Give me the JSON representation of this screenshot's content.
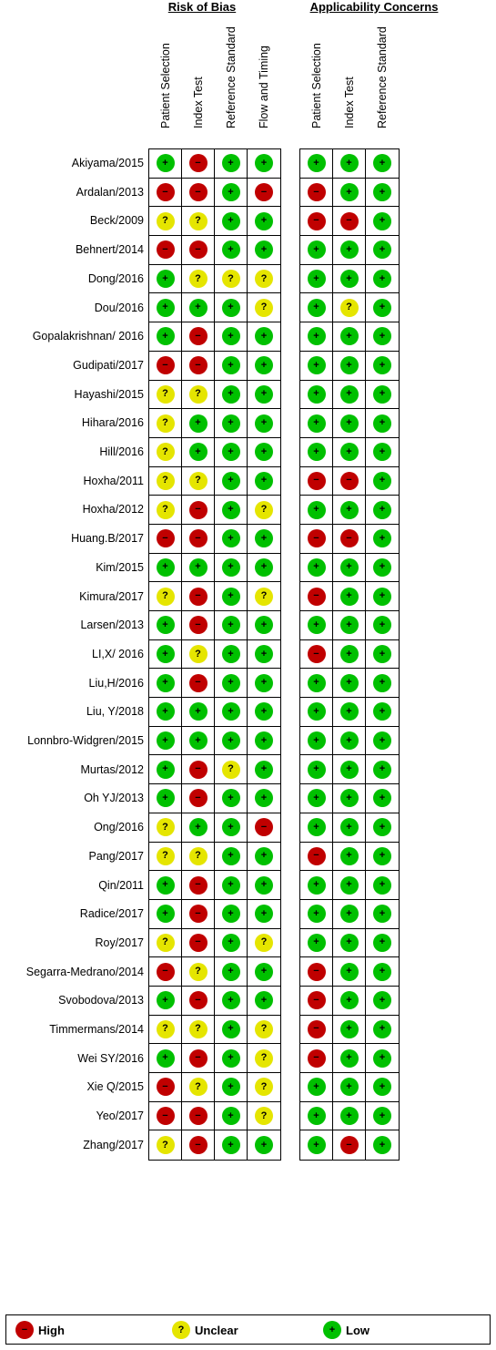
{
  "groups": {
    "risk_of_bias": "Risk of Bias",
    "applicability": "Applicability Concerns"
  },
  "columns": {
    "risk_of_bias": [
      "Patient Selection",
      "Index Test",
      "Reference Standard",
      "Flow and Timing"
    ],
    "applicability": [
      "Patient Selection",
      "Index Test",
      "Reference Standard"
    ]
  },
  "symbols": {
    "low": "+",
    "high": "−",
    "unclear": "?"
  },
  "colors": {
    "low": "#00c000",
    "high": "#c00000",
    "unclear": "#e5e500"
  },
  "legend": {
    "high": "High",
    "unclear": "Unclear",
    "low": "Low"
  },
  "studies": [
    {
      "name": "Akiyama/2015",
      "rob": [
        "low",
        "high",
        "low",
        "low"
      ],
      "ac": [
        "low",
        "low",
        "low"
      ]
    },
    {
      "name": "Ardalan/2013",
      "rob": [
        "high",
        "high",
        "low",
        "high"
      ],
      "ac": [
        "high",
        "low",
        "low"
      ]
    },
    {
      "name": "Beck/2009",
      "rob": [
        "unclear",
        "unclear",
        "low",
        "low"
      ],
      "ac": [
        "high",
        "high",
        "low"
      ]
    },
    {
      "name": "Behnert/2014",
      "rob": [
        "high",
        "high",
        "low",
        "low"
      ],
      "ac": [
        "low",
        "low",
        "low"
      ]
    },
    {
      "name": "Dong/2016",
      "rob": [
        "low",
        "unclear",
        "unclear",
        "unclear"
      ],
      "ac": [
        "low",
        "low",
        "low"
      ]
    },
    {
      "name": "Dou/2016",
      "rob": [
        "low",
        "low",
        "low",
        "unclear"
      ],
      "ac": [
        "low",
        "unclear",
        "low"
      ]
    },
    {
      "name": "Gopalakrishnan/ 2016",
      "rob": [
        "low",
        "high",
        "low",
        "low"
      ],
      "ac": [
        "low",
        "low",
        "low"
      ]
    },
    {
      "name": "Gudipati/2017",
      "rob": [
        "high",
        "high",
        "low",
        "low"
      ],
      "ac": [
        "low",
        "low",
        "low"
      ]
    },
    {
      "name": "Hayashi/2015",
      "rob": [
        "unclear",
        "unclear",
        "low",
        "low"
      ],
      "ac": [
        "low",
        "low",
        "low"
      ]
    },
    {
      "name": "Hihara/2016",
      "rob": [
        "unclear",
        "low",
        "low",
        "low"
      ],
      "ac": [
        "low",
        "low",
        "low"
      ]
    },
    {
      "name": "Hill/2016",
      "rob": [
        "unclear",
        "low",
        "low",
        "low"
      ],
      "ac": [
        "low",
        "low",
        "low"
      ]
    },
    {
      "name": "Hoxha/2011",
      "rob": [
        "unclear",
        "unclear",
        "low",
        "low"
      ],
      "ac": [
        "high",
        "high",
        "low"
      ]
    },
    {
      "name": "Hoxha/2012",
      "rob": [
        "unclear",
        "high",
        "low",
        "unclear"
      ],
      "ac": [
        "low",
        "low",
        "low"
      ]
    },
    {
      "name": "Huang.B/2017",
      "rob": [
        "high",
        "high",
        "low",
        "low"
      ],
      "ac": [
        "high",
        "high",
        "low"
      ]
    },
    {
      "name": "Kim/2015",
      "rob": [
        "low",
        "low",
        "low",
        "low"
      ],
      "ac": [
        "low",
        "low",
        "low"
      ]
    },
    {
      "name": "Kimura/2017",
      "rob": [
        "unclear",
        "high",
        "low",
        "unclear"
      ],
      "ac": [
        "high",
        "low",
        "low"
      ]
    },
    {
      "name": "Larsen/2013",
      "rob": [
        "low",
        "high",
        "low",
        "low"
      ],
      "ac": [
        "low",
        "low",
        "low"
      ]
    },
    {
      "name": "LI,X/ 2016",
      "rob": [
        "low",
        "unclear",
        "low",
        "low"
      ],
      "ac": [
        "high",
        "low",
        "low"
      ]
    },
    {
      "name": "Liu,H/2016",
      "rob": [
        "low",
        "high",
        "low",
        "low"
      ],
      "ac": [
        "low",
        "low",
        "low"
      ]
    },
    {
      "name": "Liu, Y/2018",
      "rob": [
        "low",
        "low",
        "low",
        "low"
      ],
      "ac": [
        "low",
        "low",
        "low"
      ]
    },
    {
      "name": "Lonnbro-Widgren/2015",
      "rob": [
        "low",
        "low",
        "low",
        "low"
      ],
      "ac": [
        "low",
        "low",
        "low"
      ]
    },
    {
      "name": "Murtas/2012",
      "rob": [
        "low",
        "high",
        "unclear",
        "low"
      ],
      "ac": [
        "low",
        "low",
        "low"
      ]
    },
    {
      "name": "Oh YJ/2013",
      "rob": [
        "low",
        "high",
        "low",
        "low"
      ],
      "ac": [
        "low",
        "low",
        "low"
      ]
    },
    {
      "name": "Ong/2016",
      "rob": [
        "unclear",
        "low",
        "low",
        "high"
      ],
      "ac": [
        "low",
        "low",
        "low"
      ]
    },
    {
      "name": "Pang/2017",
      "rob": [
        "unclear",
        "unclear",
        "low",
        "low"
      ],
      "ac": [
        "high",
        "low",
        "low"
      ]
    },
    {
      "name": "Qin/2011",
      "rob": [
        "low",
        "high",
        "low",
        "low"
      ],
      "ac": [
        "low",
        "low",
        "low"
      ]
    },
    {
      "name": "Radice/2017",
      "rob": [
        "low",
        "high",
        "low",
        "low"
      ],
      "ac": [
        "low",
        "low",
        "low"
      ]
    },
    {
      "name": "Roy/2017",
      "rob": [
        "unclear",
        "high",
        "low",
        "unclear"
      ],
      "ac": [
        "low",
        "low",
        "low"
      ]
    },
    {
      "name": "Segarra-Medrano/2014",
      "rob": [
        "high",
        "unclear",
        "low",
        "low"
      ],
      "ac": [
        "high",
        "low",
        "low"
      ]
    },
    {
      "name": "Svobodova/2013",
      "rob": [
        "low",
        "high",
        "low",
        "low"
      ],
      "ac": [
        "high",
        "low",
        "low"
      ]
    },
    {
      "name": "Timmermans/2014",
      "rob": [
        "unclear",
        "unclear",
        "low",
        "unclear"
      ],
      "ac": [
        "high",
        "low",
        "low"
      ]
    },
    {
      "name": "Wei SY/2016",
      "rob": [
        "low",
        "high",
        "low",
        "unclear"
      ],
      "ac": [
        "high",
        "low",
        "low"
      ]
    },
    {
      "name": "Xie Q/2015",
      "rob": [
        "high",
        "unclear",
        "low",
        "unclear"
      ],
      "ac": [
        "low",
        "low",
        "low"
      ]
    },
    {
      "name": "Yeo/2017",
      "rob": [
        "high",
        "high",
        "low",
        "unclear"
      ],
      "ac": [
        "low",
        "low",
        "low"
      ]
    },
    {
      "name": "Zhang/2017",
      "rob": [
        "unclear",
        "high",
        "low",
        "low"
      ],
      "ac": [
        "low",
        "high",
        "low"
      ]
    }
  ]
}
